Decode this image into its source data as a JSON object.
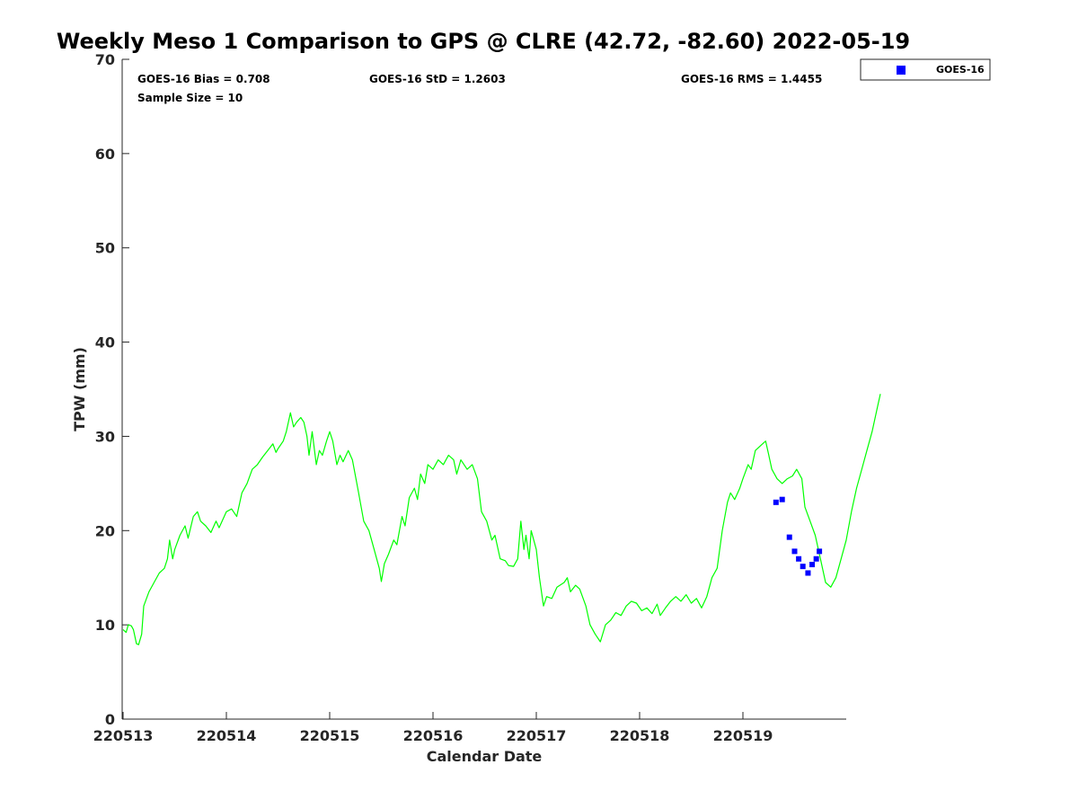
{
  "chart_data": {
    "type": "line",
    "title": "Weekly Meso 1 Comparison to GPS @ CLRE (42.72, -82.60) 2022-05-19",
    "xlabel": "Calendar Date",
    "ylabel": "TPW (mm)",
    "ylim": [
      0,
      70
    ],
    "xlim": [
      "220513",
      "220519 + ~1 day"
    ],
    "y_ticks": [
      "0",
      "10",
      "20",
      "30",
      "40",
      "50",
      "60",
      "70"
    ],
    "x_ticks": [
      "220513",
      "220514",
      "220515",
      "220516",
      "220517",
      "220518",
      "220519"
    ],
    "grid": false,
    "legend_position": "top-right, outside plot",
    "stats": {
      "bias": "GOES-16 Bias = 0.708",
      "std": "GOES-16 StD = 1.2603",
      "rms": "GOES-16 RMS = 1.4455",
      "sample_size": "Sample Size = 10"
    },
    "series": [
      {
        "color": "#00ff00",
        "style": "line",
        "x_unit": "days since 220513",
        "points": [
          [
            0.0,
            9.5
          ],
          [
            0.03,
            9.2
          ],
          [
            0.05,
            10.0
          ],
          [
            0.08,
            9.9
          ],
          [
            0.1,
            9.5
          ],
          [
            0.13,
            8.0
          ],
          [
            0.15,
            7.9
          ],
          [
            0.18,
            9.0
          ],
          [
            0.2,
            12.0
          ],
          [
            0.25,
            13.5
          ],
          [
            0.3,
            14.5
          ],
          [
            0.35,
            15.5
          ],
          [
            0.4,
            16.0
          ],
          [
            0.43,
            17.0
          ],
          [
            0.45,
            19.0
          ],
          [
            0.48,
            17.0
          ],
          [
            0.5,
            18.0
          ],
          [
            0.55,
            19.5
          ],
          [
            0.6,
            20.5
          ],
          [
            0.63,
            19.2
          ],
          [
            0.68,
            21.5
          ],
          [
            0.72,
            22.0
          ],
          [
            0.75,
            21.0
          ],
          [
            0.8,
            20.5
          ],
          [
            0.85,
            19.8
          ],
          [
            0.9,
            21.0
          ],
          [
            0.93,
            20.3
          ],
          [
            1.0,
            22.0
          ],
          [
            1.05,
            22.3
          ],
          [
            1.1,
            21.5
          ],
          [
            1.15,
            24.0
          ],
          [
            1.2,
            25.0
          ],
          [
            1.25,
            26.5
          ],
          [
            1.3,
            27.0
          ],
          [
            1.35,
            27.8
          ],
          [
            1.4,
            28.5
          ],
          [
            1.45,
            29.2
          ],
          [
            1.48,
            28.3
          ],
          [
            1.5,
            28.7
          ],
          [
            1.55,
            29.5
          ],
          [
            1.58,
            30.5
          ],
          [
            1.62,
            32.5
          ],
          [
            1.65,
            31.0
          ],
          [
            1.68,
            31.5
          ],
          [
            1.72,
            32.0
          ],
          [
            1.75,
            31.5
          ],
          [
            1.78,
            30.0
          ],
          [
            1.8,
            28.0
          ],
          [
            1.83,
            30.5
          ],
          [
            1.87,
            27.0
          ],
          [
            1.9,
            28.5
          ],
          [
            1.93,
            28.0
          ],
          [
            1.97,
            29.5
          ],
          [
            2.0,
            30.5
          ],
          [
            2.03,
            29.5
          ],
          [
            2.07,
            27.0
          ],
          [
            2.1,
            28.0
          ],
          [
            2.13,
            27.3
          ],
          [
            2.18,
            28.5
          ],
          [
            2.22,
            27.5
          ],
          [
            2.28,
            24.0
          ],
          [
            2.33,
            21.0
          ],
          [
            2.38,
            20.0
          ],
          [
            2.43,
            18.0
          ],
          [
            2.48,
            16.0
          ],
          [
            2.5,
            14.6
          ],
          [
            2.53,
            16.5
          ],
          [
            2.57,
            17.5
          ],
          [
            2.62,
            19.0
          ],
          [
            2.65,
            18.5
          ],
          [
            2.7,
            21.5
          ],
          [
            2.73,
            20.5
          ],
          [
            2.77,
            23.5
          ],
          [
            2.82,
            24.5
          ],
          [
            2.85,
            23.3
          ],
          [
            2.88,
            26.0
          ],
          [
            2.92,
            25.0
          ],
          [
            2.95,
            27.0
          ],
          [
            3.0,
            26.5
          ],
          [
            3.05,
            27.5
          ],
          [
            3.1,
            27.0
          ],
          [
            3.15,
            28.0
          ],
          [
            3.2,
            27.5
          ],
          [
            3.23,
            26.0
          ],
          [
            3.27,
            27.5
          ],
          [
            3.33,
            26.5
          ],
          [
            3.38,
            27.0
          ],
          [
            3.43,
            25.5
          ],
          [
            3.47,
            22.0
          ],
          [
            3.52,
            21.0
          ],
          [
            3.57,
            19.0
          ],
          [
            3.6,
            19.5
          ],
          [
            3.65,
            17.0
          ],
          [
            3.7,
            16.8
          ],
          [
            3.73,
            16.3
          ],
          [
            3.78,
            16.2
          ],
          [
            3.82,
            17.0
          ],
          [
            3.85,
            21.0
          ],
          [
            3.88,
            18.0
          ],
          [
            3.9,
            19.5
          ],
          [
            3.93,
            17.0
          ],
          [
            3.95,
            20.0
          ],
          [
            4.0,
            18.0
          ],
          [
            4.03,
            15.0
          ],
          [
            4.07,
            12.0
          ],
          [
            4.1,
            13.0
          ],
          [
            4.15,
            12.8
          ],
          [
            4.2,
            14.0
          ],
          [
            4.27,
            14.5
          ],
          [
            4.3,
            15.0
          ],
          [
            4.33,
            13.5
          ],
          [
            4.38,
            14.2
          ],
          [
            4.42,
            13.8
          ],
          [
            4.48,
            12.0
          ],
          [
            4.52,
            10.0
          ],
          [
            4.57,
            9.0
          ],
          [
            4.62,
            8.2
          ],
          [
            4.67,
            10.0
          ],
          [
            4.72,
            10.5
          ],
          [
            4.77,
            11.3
          ],
          [
            4.82,
            11.0
          ],
          [
            4.87,
            12.0
          ],
          [
            4.92,
            12.5
          ],
          [
            4.97,
            12.3
          ],
          [
            5.02,
            11.5
          ],
          [
            5.07,
            11.8
          ],
          [
            5.12,
            11.2
          ],
          [
            5.17,
            12.2
          ],
          [
            5.2,
            11.0
          ],
          [
            5.25,
            11.8
          ],
          [
            5.3,
            12.5
          ],
          [
            5.35,
            13.0
          ],
          [
            5.4,
            12.5
          ],
          [
            5.45,
            13.2
          ],
          [
            5.5,
            12.3
          ],
          [
            5.55,
            12.8
          ],
          [
            5.6,
            11.8
          ],
          [
            5.65,
            13.0
          ],
          [
            5.7,
            15.0
          ],
          [
            5.75,
            16.0
          ],
          [
            5.8,
            20.0
          ],
          [
            5.85,
            23.0
          ],
          [
            5.88,
            24.0
          ],
          [
            5.92,
            23.3
          ],
          [
            5.97,
            24.5
          ],
          [
            6.0,
            25.5
          ],
          [
            6.05,
            27.0
          ],
          [
            6.08,
            26.5
          ],
          [
            6.12,
            28.5
          ],
          [
            6.17,
            29.0
          ],
          [
            6.22,
            29.5
          ],
          [
            6.25,
            28.0
          ],
          [
            6.28,
            26.5
          ],
          [
            6.33,
            25.5
          ],
          [
            6.38,
            25.0
          ],
          [
            6.43,
            25.5
          ],
          [
            6.48,
            25.8
          ],
          [
            6.52,
            26.5
          ],
          [
            6.57,
            25.5
          ],
          [
            6.6,
            22.5
          ],
          [
            6.65,
            21.0
          ],
          [
            6.7,
            19.5
          ],
          [
            6.75,
            17.0
          ],
          [
            6.8,
            14.5
          ],
          [
            6.85,
            14.0
          ],
          [
            6.9,
            15.0
          ],
          [
            6.95,
            17.0
          ],
          [
            7.0,
            19.0
          ],
          [
            7.05,
            22.0
          ],
          [
            7.1,
            24.5
          ],
          [
            7.15,
            26.5
          ],
          [
            7.2,
            28.5
          ],
          [
            7.25,
            30.5
          ],
          [
            7.3,
            33.0
          ],
          [
            7.33,
            34.5
          ]
        ]
      },
      {
        "name": "GOES-16",
        "color": "#0000ff",
        "style": "marker-square",
        "x_unit": "days since 220513",
        "points": [
          [
            6.32,
            23.0
          ],
          [
            6.38,
            23.3
          ],
          [
            6.45,
            19.3
          ],
          [
            6.5,
            17.8
          ],
          [
            6.54,
            17.0
          ],
          [
            6.58,
            16.2
          ],
          [
            6.63,
            15.5
          ],
          [
            6.67,
            16.4
          ],
          [
            6.71,
            17.0
          ],
          [
            6.74,
            17.8
          ]
        ]
      }
    ]
  }
}
